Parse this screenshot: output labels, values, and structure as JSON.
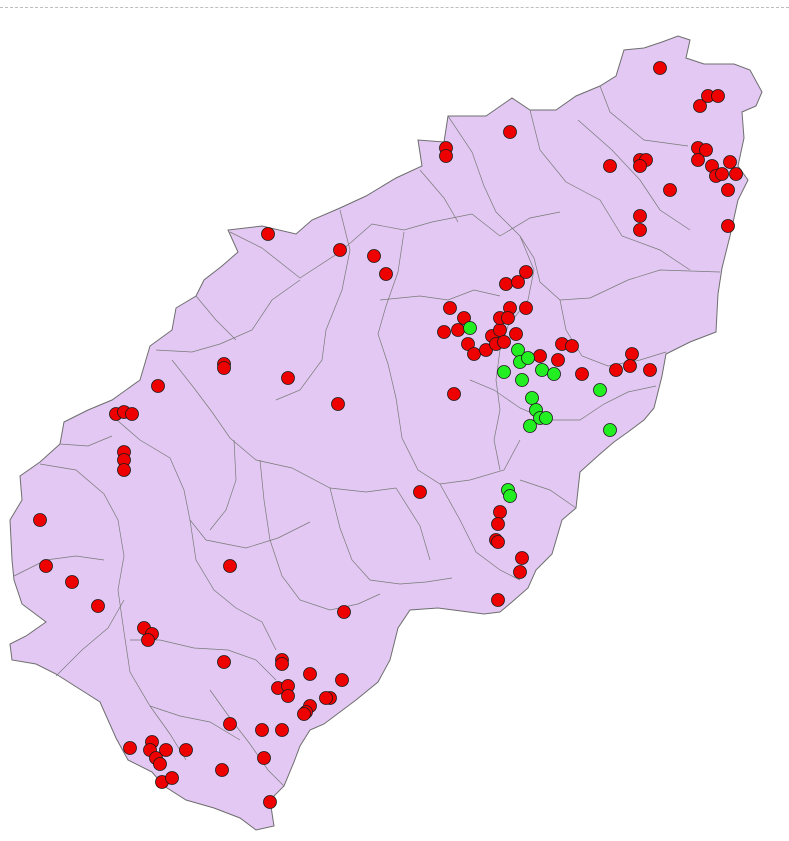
{
  "map": {
    "region_fill": "#e2c8f2",
    "boundary_color": "#6e6e6e",
    "site_categories": [
      {
        "name": "red-sites",
        "color": "#ee0000"
      },
      {
        "name": "green-sites",
        "color": "#22ee22"
      }
    ]
  }
}
